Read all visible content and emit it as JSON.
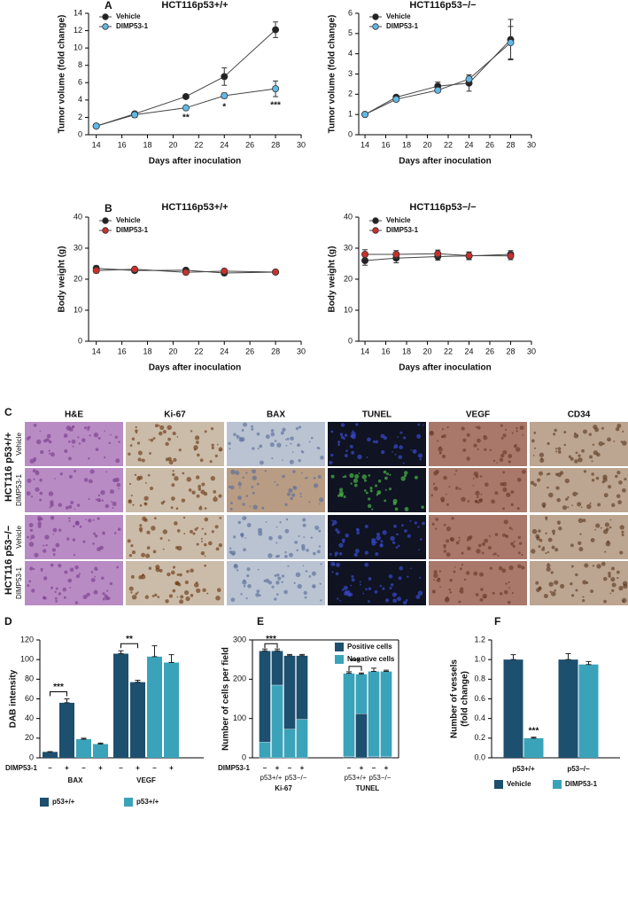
{
  "chart_data": [
    {
      "type": "line",
      "panel_label": "A",
      "title": "HCT116p53+/+",
      "xlabel": "Days after inoculation",
      "ylabel": "Tumor volume (fold change)",
      "x": [
        14,
        17,
        21,
        24,
        28
      ],
      "xlim": [
        13.4,
        30
      ],
      "xticks": [
        14,
        16,
        18,
        20,
        22,
        24,
        26,
        28,
        30
      ],
      "ylim": [
        0,
        14
      ],
      "yticks": [
        0,
        2,
        4,
        6,
        8,
        10,
        12,
        14
      ],
      "legend": "upper left",
      "series": [
        {
          "name": "Vehicle",
          "color": "#222222",
          "values": [
            1,
            2.4,
            4.4,
            6.7,
            12.1
          ],
          "errors": [
            0.1,
            0.2,
            0.2,
            1.0,
            0.9
          ]
        },
        {
          "name": "DIMP53-1",
          "color": "#62b8e6",
          "values": [
            1,
            2.3,
            3.1,
            4.5,
            5.3
          ],
          "errors": [
            0.1,
            0.3,
            0.1,
            0.3,
            0.9
          ]
        }
      ],
      "significance": [
        null,
        null,
        "**",
        "*",
        "***"
      ]
    },
    {
      "type": "line",
      "title": "HCT116p53−/−",
      "xlabel": "Days after inoculation",
      "ylabel": "Tumor volume (fold change)",
      "x": [
        14,
        17,
        21,
        24,
        28
      ],
      "xlim": [
        13.4,
        30
      ],
      "xticks": [
        14,
        16,
        18,
        20,
        22,
        24,
        26,
        28,
        30
      ],
      "ylim": [
        0,
        6
      ],
      "yticks": [
        0,
        1,
        2,
        3,
        4,
        5,
        6
      ],
      "legend": "upper left",
      "series": [
        {
          "name": "Vehicle",
          "color": "#222222",
          "values": [
            1,
            1.85,
            2.4,
            2.55,
            4.7
          ],
          "errors": [
            0.05,
            0.1,
            0.2,
            0.4,
            1.0
          ]
        },
        {
          "name": "DIMP53-1",
          "color": "#62b8e6",
          "values": [
            1,
            1.75,
            2.2,
            2.75,
            4.55
          ],
          "errors": [
            0.05,
            0.1,
            0.1,
            0.2,
            0.8
          ]
        }
      ]
    },
    {
      "type": "line",
      "panel_label": "B",
      "title": "HCT116p53+/+",
      "xlabel": "Days after inoculation",
      "ylabel": "Body weight (g)",
      "x": [
        14,
        17,
        21,
        24,
        28
      ],
      "xlim": [
        13.4,
        30
      ],
      "xticks": [
        14,
        16,
        18,
        20,
        22,
        24,
        26,
        28,
        30
      ],
      "ylim": [
        0,
        40
      ],
      "yticks": [
        0,
        10,
        20,
        30,
        40
      ],
      "legend": "upper left",
      "series": [
        {
          "name": "Vehicle",
          "color": "#222222",
          "values": [
            23.5,
            22.8,
            22.9,
            22.0,
            22.3
          ],
          "errors": [
            0.8,
            0.6,
            0.6,
            0.6,
            0.5
          ]
        },
        {
          "name": "DIMP53-1",
          "color": "#c9302c",
          "values": [
            22.8,
            23.2,
            22.2,
            22.6,
            22.3
          ],
          "errors": [
            0.8,
            0.6,
            0.6,
            0.6,
            0.5
          ]
        }
      ]
    },
    {
      "type": "line",
      "title": "HCT116p53−/−",
      "xlabel": "Days after inoculation",
      "ylabel": "Body weight (g)",
      "x": [
        14,
        17,
        21,
        24,
        28
      ],
      "xlim": [
        13.4,
        30
      ],
      "xticks": [
        14,
        16,
        18,
        20,
        22,
        24,
        26,
        28,
        30
      ],
      "ylim": [
        0,
        40
      ],
      "yticks": [
        0,
        10,
        20,
        30,
        40
      ],
      "legend": "upper left",
      "series": [
        {
          "name": "Vehicle",
          "color": "#222222",
          "values": [
            26,
            26.8,
            27.3,
            27.5,
            28
          ],
          "errors": [
            1.5,
            1.5,
            1.2,
            1.2,
            1.2
          ]
        },
        {
          "name": "DIMP53-1",
          "color": "#c9302c",
          "values": [
            28,
            28,
            28.2,
            27.6,
            27.5
          ],
          "errors": [
            1.5,
            1.2,
            1.2,
            1.2,
            1.2
          ]
        }
      ]
    },
    {
      "type": "bar",
      "panel_label": "D",
      "ylabel": "DAB intensity",
      "categories": [
        "BAX",
        "VEGF"
      ],
      "ylim": [
        0,
        120
      ],
      "yticks": [
        0,
        20,
        40,
        60,
        80,
        100,
        120
      ],
      "treatment_title": "DIMP53-1",
      "treatment_labels": [
        "–",
        "+"
      ],
      "legend": "below",
      "series": [
        {
          "name": "p53+/+",
          "color": "#1d4f6e",
          "values": [
            [
              6,
              56
            ],
            [
              106,
              77
            ]
          ],
          "errors": [
            [
              0.3,
              4
            ],
            [
              3,
              2
            ]
          ]
        },
        {
          "name": "p53+/+",
          "color": "#3ba3b9",
          "values": [
            [
              19,
              14
            ],
            [
              103,
              97
            ]
          ],
          "errors": [
            [
              1,
              1
            ],
            [
              11,
              8
            ]
          ]
        }
      ],
      "significance": [
        "***",
        "**"
      ]
    },
    {
      "type": "stacked_bar",
      "panel_label": "E",
      "ylabel": "Number of cells per field",
      "categories": [
        "Ki-67",
        "TUNEL"
      ],
      "group_labels": [
        "p53+/+",
        "p53−/−"
      ],
      "ylim": [
        0,
        300
      ],
      "yticks": [
        0,
        100,
        200,
        300
      ],
      "treatment_title": "DIMP53-1",
      "treatment_labels": [
        "–",
        "+"
      ],
      "legend": "upper right",
      "stack_bottom": [
        1,
        0
      ],
      "series": [
        {
          "name": "Positive cells",
          "color": "#1d4f6e",
          "values": [
            [
              232,
              87,
              187,
              162
            ],
            [
              3,
              112,
              3,
              3
            ]
          ]
        },
        {
          "name": "Negative cells",
          "color": "#3ba3b9",
          "values": [
            [
              40,
              185,
              73,
              98
            ],
            [
              212,
              101,
              217,
              217
            ]
          ]
        }
      ],
      "errors": [
        [
          5,
          5,
          3,
          3
        ],
        [
          4,
          3,
          8,
          3
        ]
      ],
      "significance": [
        "***",
        "***"
      ]
    },
    {
      "type": "bar",
      "panel_label": "F",
      "ylabel": [
        "Number of vessels",
        "(fold change)"
      ],
      "categories": [
        "p53+/+",
        "p53−/−"
      ],
      "ylim": [
        0,
        1.2
      ],
      "yticks": [
        {
          "value": 0,
          "label": "0.0"
        },
        0.2,
        0.4,
        0.6,
        0.8,
        {
          "value": 1,
          "label": "1.0"
        },
        1.2
      ],
      "legend": "below",
      "series": [
        {
          "name": "Vehicle",
          "color": "#1d4f6e",
          "values": [
            1.0,
            1.0
          ],
          "errors": [
            0.05,
            0.06
          ]
        },
        {
          "name": "DIMP53-1",
          "color": "#3ba3b9",
          "values": [
            0.2,
            0.95
          ],
          "errors": [
            0.01,
            0.03
          ]
        }
      ],
      "significance": [
        "***",
        null
      ]
    }
  ],
  "micrographs": {
    "panel_label": "C",
    "columns": [
      "H&E",
      "Ki-67",
      "BAX",
      "TUNEL",
      "VEGF",
      "CD34"
    ],
    "groups": [
      {
        "label": "HCT116 p53+/+",
        "rows": [
          "Vehicle",
          "DIMP53-1"
        ]
      },
      {
        "label": "HCT116 p53−/−",
        "rows": [
          "Vehicle",
          "DIMP53-1"
        ]
      }
    ]
  }
}
